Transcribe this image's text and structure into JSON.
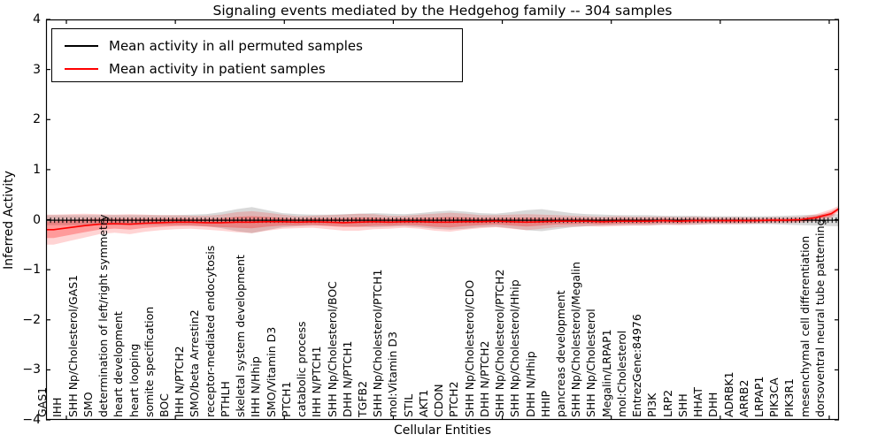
{
  "chart_data": {
    "type": "line",
    "title": "Signaling events mediated by the Hedgehog family -- 304 samples",
    "xlabel": "Cellular Entities",
    "ylabel": "Inferred Activity",
    "ylim": [
      -4,
      4
    ],
    "yticks": [
      4,
      3,
      2,
      1,
      0,
      -1,
      -2,
      -3,
      -4
    ],
    "grid": false,
    "legend_position": "upper left",
    "categories": [
      "GAS1",
      "IHH",
      "SHH Np/Cholesterol/GAS1",
      "SMO",
      "determination of left/right symmetry",
      "heart development",
      "heart looping",
      "somite specification",
      "BOC",
      "IHH N/PTCH2",
      "SMO/beta Arrestin2",
      "receptor-mediated endocytosis",
      "PTHLH",
      "skeletal system development",
      "IHH N/Hhip",
      "SMO/Vitamin D3",
      "PTCH1",
      "catabolic process",
      "IHH N/PTCH1",
      "SHH Np/Cholesterol/BOC",
      "DHH N/PTCH1",
      "TGFB2",
      "SHH Np/Cholesterol/PTCH1",
      "mol:Vitamin D3",
      "STIL",
      "AKT1",
      "CDON",
      "PTCH2",
      "SHH Np/Cholesterol/CDO",
      "DHH N/PTCH2",
      "SHH Np/Cholesterol/PTCH2",
      "SHH Np/Cholesterol/Hhip",
      "DHH N/Hhip",
      "HHIP",
      "pancreas development",
      "SHH Np/Cholesterol/Megalin",
      "SHH Np/Cholesterol",
      "Megalin/LRPAP1",
      "mol:Cholesterol",
      "EntrezGene:84976",
      "PI3K",
      "LRP2",
      "SHH",
      "HHAT",
      "DHH",
      "ADRBK1",
      "ARRB2",
      "LRPAP1",
      "PIK3CA",
      "PIK3R1",
      "mesenchymal cell differentiation",
      "dorsoventral neural tube patterning"
    ],
    "series": [
      {
        "name": "Mean activity in all permuted samples",
        "color": "#000000",
        "band_color": "#b3b3b3",
        "band_opacity": 0.5,
        "marker": "+",
        "values": [
          -0.01,
          -0.01,
          -0.01,
          -0.01,
          -0.01,
          -0.01,
          -0.01,
          -0.01,
          -0.01,
          -0.01,
          -0.01,
          -0.01,
          -0.01,
          -0.01,
          -0.01,
          -0.01,
          -0.01,
          -0.01,
          -0.01,
          -0.01,
          -0.01,
          -0.01,
          -0.01,
          -0.01,
          -0.01,
          -0.01,
          -0.01,
          -0.01,
          -0.01,
          -0.01,
          -0.01,
          -0.01,
          -0.01,
          -0.01,
          -0.01,
          -0.01,
          -0.01,
          -0.01,
          -0.01,
          -0.01,
          -0.01,
          -0.01,
          -0.01,
          -0.01,
          -0.01,
          -0.01,
          -0.01,
          -0.01,
          -0.01,
          -0.01,
          -0.01,
          -0.01
        ],
        "band_halfwidth": [
          0.1,
          0.1,
          0.1,
          0.1,
          0.1,
          0.1,
          0.1,
          0.1,
          0.1,
          0.11,
          0.12,
          0.16,
          0.22,
          0.26,
          0.2,
          0.14,
          0.12,
          0.11,
          0.11,
          0.12,
          0.13,
          0.14,
          0.13,
          0.12,
          0.14,
          0.17,
          0.19,
          0.17,
          0.14,
          0.13,
          0.16,
          0.2,
          0.22,
          0.18,
          0.14,
          0.12,
          0.11,
          0.1,
          0.1,
          0.1,
          0.09,
          0.09,
          0.09,
          0.08,
          0.08,
          0.08,
          0.08,
          0.08,
          0.09,
          0.1,
          0.11,
          0.12
        ],
        "edge_right_value": -0.01,
        "edge_right_halfwidth": 0.12
      },
      {
        "name": "Mean activity in patient samples",
        "color": "#ff0000",
        "band_color": "#ff0000",
        "band_opacity": 0.17,
        "inner_band_factor": 0.55,
        "inner_band_opacity": 0.27,
        "values": [
          -0.2,
          -0.16,
          -0.12,
          -0.09,
          -0.08,
          -0.09,
          -0.07,
          -0.06,
          -0.05,
          -0.05,
          -0.06,
          -0.06,
          -0.05,
          -0.05,
          -0.04,
          -0.04,
          -0.05,
          -0.04,
          -0.05,
          -0.06,
          -0.05,
          -0.04,
          -0.05,
          -0.04,
          -0.04,
          -0.05,
          -0.05,
          -0.04,
          -0.04,
          -0.03,
          -0.04,
          -0.05,
          -0.04,
          -0.03,
          -0.03,
          -0.03,
          -0.04,
          -0.03,
          -0.03,
          -0.03,
          -0.02,
          -0.03,
          -0.02,
          -0.02,
          -0.02,
          -0.02,
          -0.02,
          -0.01,
          -0.01,
          0.0,
          0.04,
          0.12
        ],
        "band_halfwidth": [
          0.3,
          0.27,
          0.24,
          0.2,
          0.18,
          0.2,
          0.17,
          0.15,
          0.14,
          0.13,
          0.14,
          0.16,
          0.2,
          0.22,
          0.18,
          0.14,
          0.12,
          0.12,
          0.14,
          0.16,
          0.17,
          0.15,
          0.13,
          0.12,
          0.14,
          0.17,
          0.19,
          0.16,
          0.13,
          0.12,
          0.14,
          0.16,
          0.14,
          0.12,
          0.11,
          0.1,
          0.1,
          0.1,
          0.09,
          0.09,
          0.08,
          0.08,
          0.08,
          0.07,
          0.07,
          0.07,
          0.06,
          0.06,
          0.06,
          0.06,
          0.07,
          0.09
        ],
        "edge_right_value": 0.22,
        "edge_right_halfwidth": 0.06
      }
    ]
  }
}
